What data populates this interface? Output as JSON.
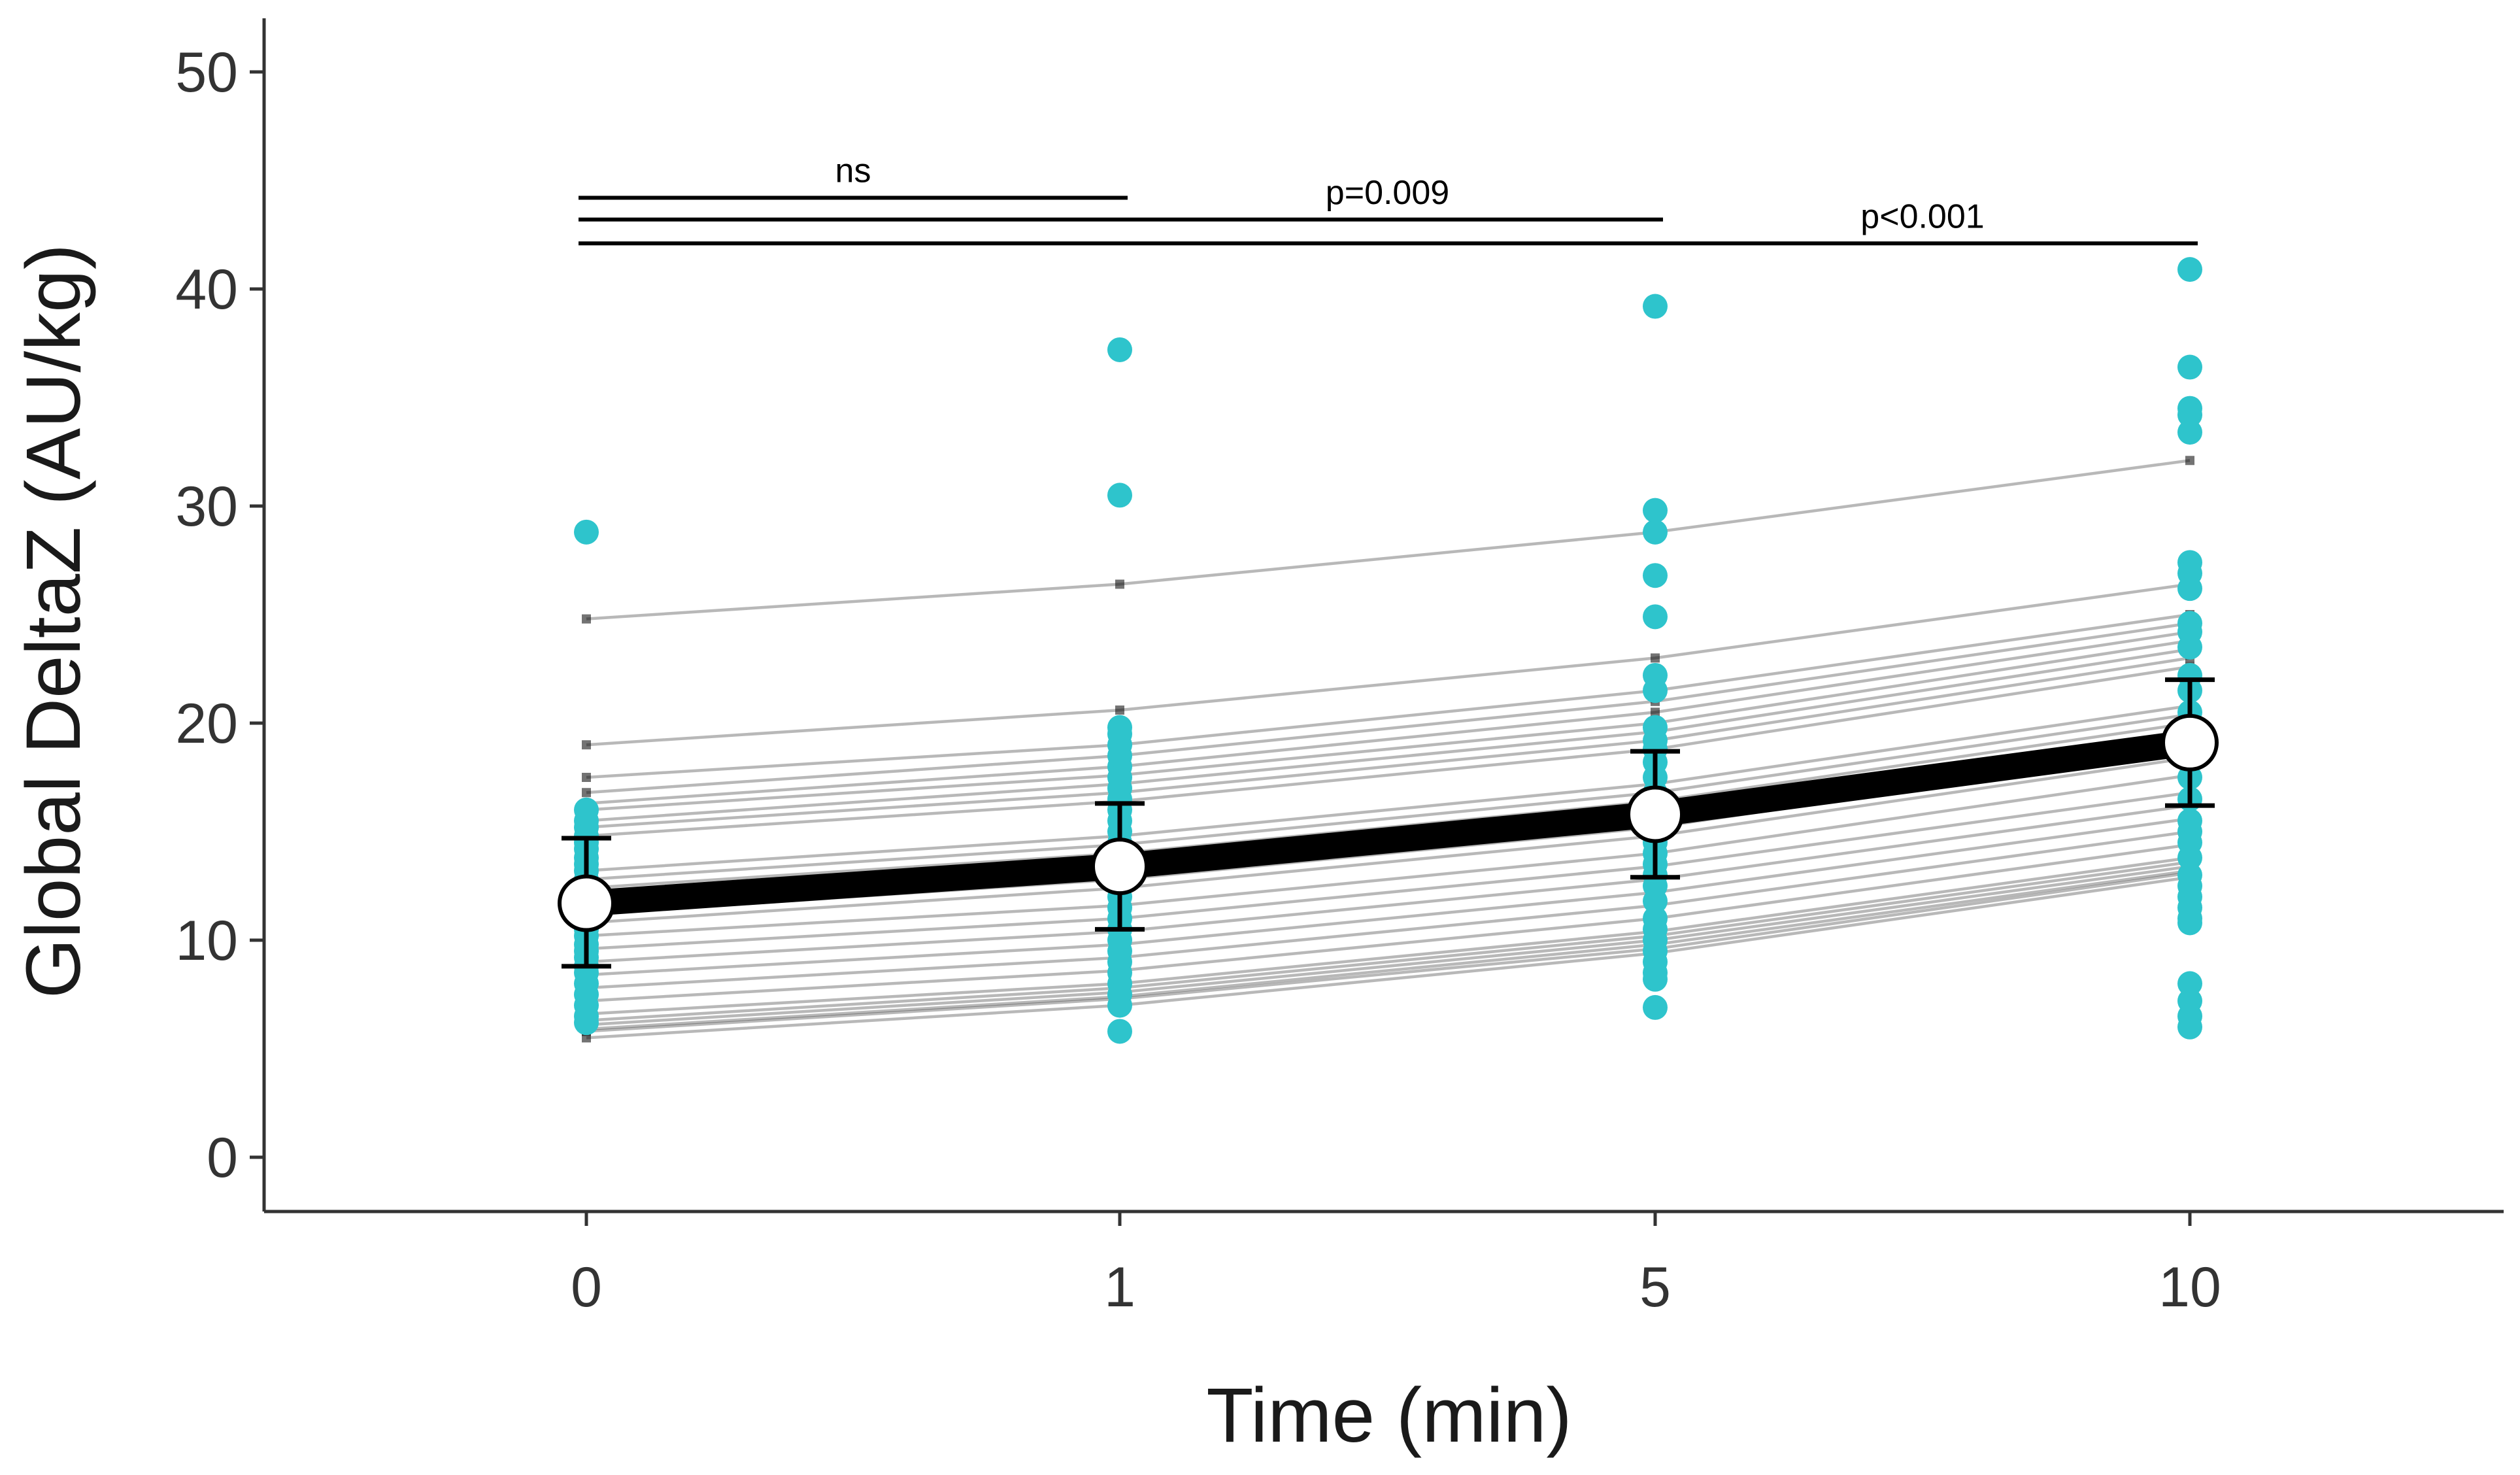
{
  "chart_data": {
    "type": "line",
    "title": "",
    "xlabel": "Time (min)",
    "ylabel": "Global DeltaZ (AU/kg)",
    "categories": [
      "0",
      "1",
      "5",
      "10"
    ],
    "ylim": [
      0,
      50
    ],
    "yticks": [
      0,
      10,
      20,
      30,
      40,
      50
    ],
    "colors": {
      "raw": "#2ec4cc",
      "subject": "#000000",
      "mean": "#000000",
      "mean_fill": "#ffffff"
    },
    "raw_points": [
      [
        28.8,
        16.0,
        15.5,
        15.2,
        14.8,
        14.5,
        14.2,
        13.8,
        13.5,
        13.2,
        12.8,
        12.5,
        12.2,
        11.8,
        11.5,
        11.2,
        10.8,
        10.5,
        10.2,
        9.8,
        9.5,
        9.2,
        8.8,
        8.5,
        8.0,
        7.5,
        7.0,
        6.5,
        6.2
      ],
      [
        37.2,
        30.5,
        19.8,
        19.5,
        19.0,
        18.5,
        18.0,
        17.5,
        17.0,
        16.5,
        16.0,
        15.5,
        15.0,
        14.5,
        14.0,
        13.5,
        13.0,
        12.5,
        12.0,
        11.5,
        11.0,
        10.5,
        10.0,
        9.5,
        9.0,
        8.5,
        8.0,
        7.5,
        7.0,
        5.8
      ],
      [
        39.2,
        29.8,
        28.8,
        26.8,
        24.9,
        22.2,
        21.5,
        19.8,
        19.2,
        18.8,
        18.2,
        17.5,
        16.8,
        16.2,
        15.5,
        15.0,
        14.5,
        14.0,
        13.5,
        13.0,
        12.5,
        11.8,
        11.0,
        10.5,
        10.0,
        9.5,
        9.0,
        8.5,
        8.2,
        6.9
      ],
      [
        40.9,
        36.4,
        34.5,
        34.2,
        33.4,
        27.4,
        26.9,
        26.2,
        24.6,
        24.2,
        23.5,
        22.2,
        21.5,
        20.5,
        19.8,
        19.2,
        18.5,
        17.5,
        16.5,
        15.5,
        15.0,
        14.5,
        13.8,
        13.0,
        12.5,
        12.0,
        11.5,
        11.0,
        10.8,
        8.0,
        7.2,
        6.5,
        6.0
      ]
    ],
    "subjects": [
      [
        24.8,
        26.4,
        28.8,
        32.1
      ],
      [
        19.0,
        20.6,
        23.0,
        26.4
      ],
      [
        17.5,
        19.0,
        21.5,
        25.0
      ],
      [
        16.8,
        18.5,
        21.0,
        24.6
      ],
      [
        16.3,
        18.0,
        20.5,
        24.2
      ],
      [
        16.0,
        17.6,
        20.0,
        23.8
      ],
      [
        15.5,
        17.2,
        19.6,
        23.4
      ],
      [
        15.2,
        16.8,
        19.2,
        23.0
      ],
      [
        14.8,
        16.4,
        18.8,
        22.6
      ],
      [
        13.2,
        14.8,
        17.2,
        20.8
      ],
      [
        12.8,
        14.4,
        16.8,
        20.4
      ],
      [
        12.4,
        14.0,
        16.4,
        20.0
      ],
      [
        12.0,
        13.6,
        16.0,
        19.6
      ],
      [
        11.6,
        13.2,
        15.6,
        19.2
      ],
      [
        11.2,
        12.8,
        15.2,
        18.8
      ],
      [
        10.8,
        12.4,
        14.8,
        18.4
      ],
      [
        10.2,
        11.6,
        14.0,
        17.6
      ],
      [
        9.6,
        11.0,
        13.4,
        16.8
      ],
      [
        9.0,
        10.4,
        12.8,
        16.2
      ],
      [
        8.4,
        9.8,
        12.2,
        15.6
      ],
      [
        7.8,
        9.2,
        11.6,
        15.0
      ],
      [
        7.2,
        8.6,
        11.0,
        14.4
      ],
      [
        6.6,
        8.0,
        10.4,
        13.8
      ],
      [
        6.3,
        7.8,
        10.2,
        13.6
      ],
      [
        6.1,
        7.6,
        10.0,
        13.4
      ],
      [
        5.9,
        7.4,
        9.8,
        13.2
      ],
      [
        5.8,
        7.3,
        9.6,
        13.1
      ],
      [
        5.5,
        7.0,
        9.4,
        12.9
      ]
    ],
    "mean": [
      11.7,
      13.4,
      15.8,
      19.1
    ],
    "error_low": [
      8.8,
      10.5,
      12.9,
      16.2
    ],
    "error_high": [
      14.7,
      16.3,
      18.7,
      22.0
    ],
    "annotations": [
      {
        "label": "ns",
        "from": 0,
        "to": 1,
        "y": 44.2
      },
      {
        "label": "p=0.009",
        "from": 0,
        "to": 2,
        "y": 43.2
      },
      {
        "label": "p<0.001",
        "from": 0,
        "to": 3,
        "y": 42.1
      }
    ]
  }
}
